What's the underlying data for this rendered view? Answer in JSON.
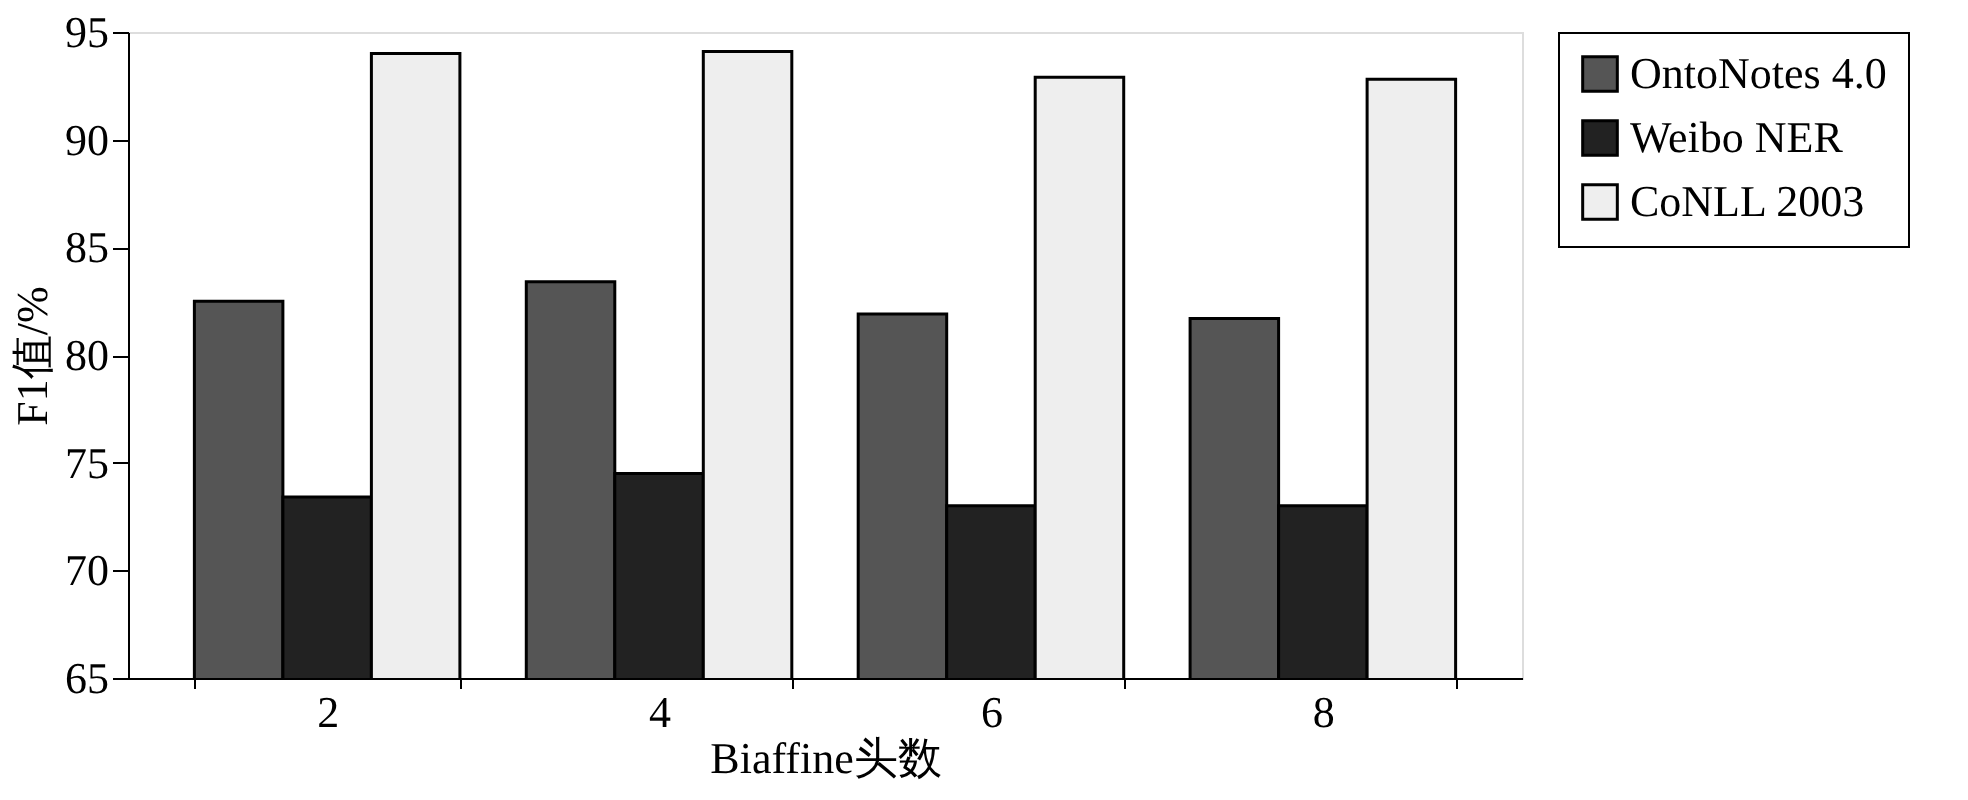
{
  "chart_data": {
    "type": "bar",
    "xlabel": "Biaffine头数",
    "ylabel": "F1值/%",
    "categories": [
      "2",
      "4",
      "6",
      "8"
    ],
    "series": [
      {
        "name": "OntoNotes 4.0",
        "color": "#555555",
        "values": [
          82.5,
          83.4,
          81.9,
          81.7
        ]
      },
      {
        "name": "Weibo NER",
        "color": "#222222",
        "values": [
          73.4,
          74.5,
          73.0,
          73.0
        ]
      },
      {
        "name": "CoNLL 2003",
        "color": "#eeeeee",
        "values": [
          94.0,
          94.1,
          92.9,
          92.8
        ]
      }
    ],
    "ylim": [
      65,
      95
    ],
    "yticks": [
      65,
      70,
      75,
      80,
      85,
      90,
      95
    ],
    "grid": false,
    "legend": "right"
  }
}
